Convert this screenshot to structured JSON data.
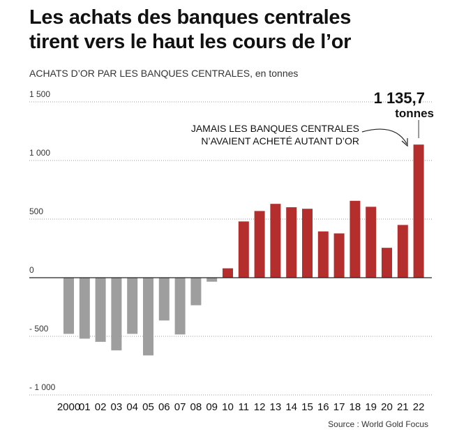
{
  "header": {
    "title_line1": "Les achats des banques centrales",
    "title_line2": "tirent vers le haut les cours de l’or",
    "subtitle_main": "ACHATS D’OR PAR LES BANQUES CENTRALES",
    "subtitle_unit": ", en tonnes"
  },
  "annotation": {
    "value": "1 135,7",
    "unit": "tonnes",
    "note_line1": "JAMAIS LES BANQUES CENTRALES",
    "note_line2": "N’AVAIENT ACHETÉ AUTANT D’OR"
  },
  "source": "Source : World Gold Focus",
  "colors": {
    "negative": "#9e9e9e",
    "positive": "#b52e2e",
    "grid": "#999999",
    "axis": "#222222"
  },
  "chart_data": {
    "type": "bar",
    "categories": [
      "2000",
      "01",
      "02",
      "03",
      "04",
      "05",
      "06",
      "07",
      "08",
      "09",
      "10",
      "11",
      "12",
      "13",
      "14",
      "15",
      "16",
      "17",
      "18",
      "19",
      "20",
      "21",
      "22"
    ],
    "values": [
      -479,
      -520,
      -547,
      -620,
      -479,
      -663,
      -365,
      -484,
      -235,
      -34,
      80,
      480,
      569,
      630,
      601,
      588,
      395,
      378,
      656,
      605,
      255,
      450,
      1135.7
    ],
    "ylim": [
      -1000,
      1500
    ],
    "yticks": [
      1500,
      1000,
      500,
      0,
      -500,
      -1000
    ],
    "ytick_labels": [
      "1 500",
      "1 000",
      "500",
      "0",
      "- 500",
      "- 1 000"
    ],
    "grid": "horizontal dotted",
    "legend": "none"
  }
}
